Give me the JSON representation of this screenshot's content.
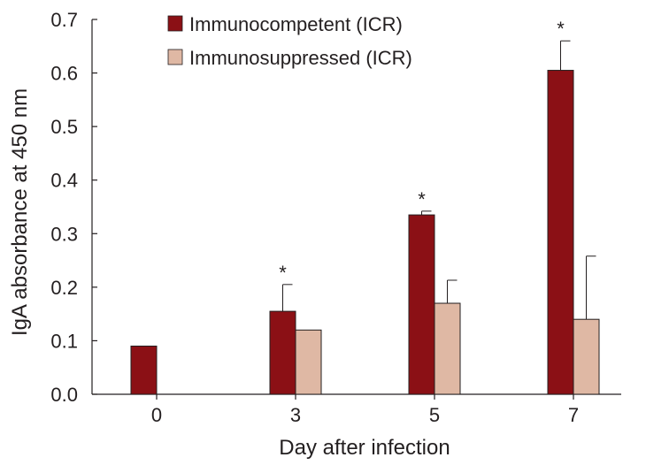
{
  "chart_data": {
    "type": "bar",
    "title": "",
    "xlabel": "Day after infection",
    "ylabel": "IgA absorbance at 450 nm",
    "categories": [
      "0",
      "3",
      "5",
      "7"
    ],
    "ylim": [
      0,
      0.7
    ],
    "ytick_labels": [
      "0.0",
      "0.1",
      "0.2",
      "0.3",
      "0.4",
      "0.5",
      "0.6",
      "0.7"
    ],
    "series": [
      {
        "name": "Immunocompetent (ICR)",
        "color": "#8b1015",
        "values": [
          0.09,
          0.155,
          0.335,
          0.605
        ],
        "errors": [
          null,
          0.05,
          0.007,
          0.055
        ]
      },
      {
        "name": "Immunosuppressed (ICR)",
        "color": "#dfb8a4",
        "values": [
          null,
          0.12,
          0.17,
          0.14
        ],
        "errors": [
          null,
          null,
          0.043,
          0.118
        ]
      }
    ],
    "annotations": [
      {
        "category": "3",
        "text": "*"
      },
      {
        "category": "5",
        "text": "*"
      },
      {
        "category": "7",
        "text": "*"
      }
    ],
    "legend_position": "top-left",
    "grid": false
  }
}
